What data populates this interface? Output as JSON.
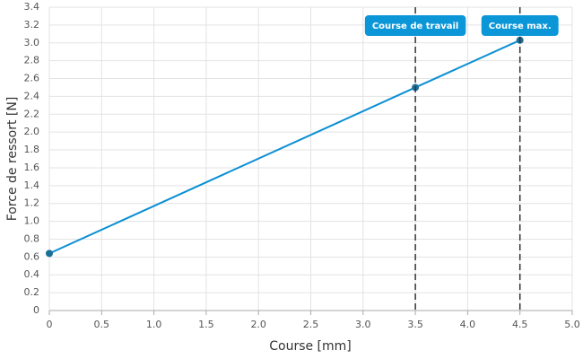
{
  "chart_data": {
    "type": "line",
    "x_label": "Course [mm]",
    "y_label": "Force de ressort [N]",
    "x": [
      0,
      3.5,
      4.5
    ],
    "values": [
      0.64,
      2.5,
      3.03
    ],
    "color": "#0b8fd4",
    "marker_color": "#1c6f96",
    "xlim": [
      0,
      5
    ],
    "xticks": [
      0,
      0.5,
      {
        "value": 1,
        "label": "1.0"
      },
      1.5,
      {
        "value": 2,
        "label": "2.0"
      },
      2.5,
      {
        "value": 3,
        "label": "3.0"
      },
      3.5,
      {
        "value": 4,
        "label": "4.0"
      },
      4.5,
      {
        "value": 5,
        "label": "5.0"
      }
    ],
    "ylim": [
      0,
      3.4
    ],
    "yticks": [
      0,
      0.2,
      0.4,
      0.6,
      0.8,
      {
        "value": 1,
        "label": "1.0"
      },
      1.2,
      1.4,
      1.6,
      1.8,
      {
        "value": 2,
        "label": "2.0"
      },
      2.2,
      2.4,
      2.6,
      2.8,
      {
        "value": 3,
        "label": "3.0"
      },
      3.2,
      3.4
    ],
    "grid": true,
    "annotations": [
      {
        "x": 3.5,
        "label": "Course de travail"
      },
      {
        "x": 4.5,
        "label": "Course max."
      }
    ],
    "annotation_color": "#0b96d8"
  }
}
